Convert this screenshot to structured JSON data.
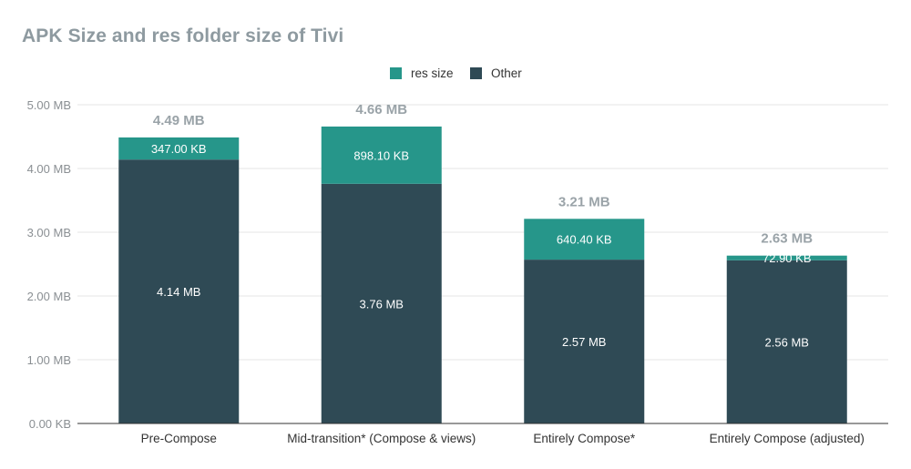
{
  "colors": {
    "res": "#26968a",
    "other": "#2f4a55",
    "grid": "#e6e6e6",
    "axis": "#333333",
    "tick_text": "#8a8f93",
    "total_text": "#9aa3a8",
    "title_text": "#8e9aa0",
    "segment_label": "#ffffff",
    "category_text": "#333333"
  },
  "chart_data": {
    "type": "bar",
    "stacked": true,
    "title": "APK Size and res folder size of Tivi",
    "xlabel": "",
    "ylabel": "",
    "ylim": [
      0,
      5
    ],
    "y_unit": "MB",
    "yticks": [
      "0.00 KB",
      "1.00 MB",
      "2.00 MB",
      "3.00 MB",
      "4.00 MB",
      "5.00 MB"
    ],
    "grid": true,
    "legend_position": "top-center",
    "legend": [
      {
        "label": "res size",
        "color_key": "res"
      },
      {
        "label": "Other",
        "color_key": "other"
      }
    ],
    "categories": [
      "Pre-Compose",
      "Mid-transition* (Compose & views)",
      "Entirely Compose*",
      "Entirely Compose (adjusted)"
    ],
    "series": [
      {
        "name": "Other",
        "color_key": "other",
        "values": [
          4.14,
          3.76,
          2.57,
          2.56
        ],
        "labels": [
          "4.14 MB",
          "3.76 MB",
          "2.57 MB",
          "2.56 MB"
        ]
      },
      {
        "name": "res size",
        "color_key": "res",
        "values": [
          0.347,
          0.898,
          0.64,
          0.073
        ],
        "labels": [
          "347.00 KB",
          "898.10 KB",
          "640.40 KB",
          "72.90 KB"
        ]
      }
    ],
    "totals": [
      4.49,
      4.66,
      3.21,
      2.63
    ],
    "total_labels": [
      "4.49 MB",
      "4.66 MB",
      "3.21 MB",
      "2.63 MB"
    ]
  }
}
